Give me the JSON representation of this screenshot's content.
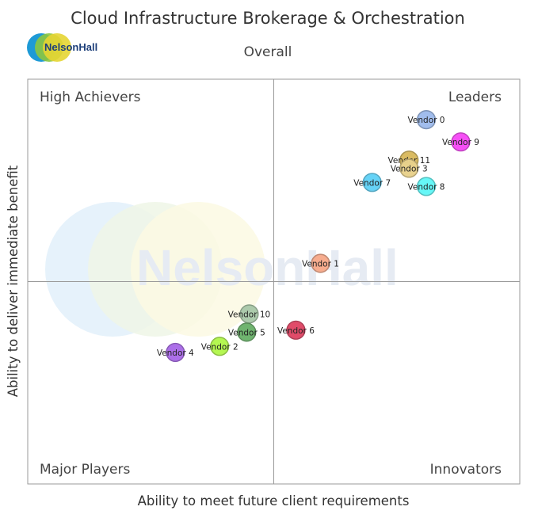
{
  "logo": {
    "text": "NelsonHall"
  },
  "watermark": {
    "text": "NelsonHall"
  },
  "chart_data": {
    "type": "scatter",
    "title": "Cloud Infrastructure Brokerage & Orchestration",
    "subtitle": "Overall",
    "xlabel": "Ability to meet future client requirements",
    "ylabel": "Ability to deliver immediate benefit",
    "xlim": [
      0,
      10
    ],
    "ylim": [
      0,
      10
    ],
    "quadrants": {
      "top_left": "High Achievers",
      "top_right": "Leaders",
      "bottom_left": "Major Players",
      "bottom_right": "Innovators"
    },
    "points": [
      {
        "label": "Vendor 0",
        "x": 8.1,
        "y": 9.0,
        "color": "#a4c2f4"
      },
      {
        "label": "Vendor 9",
        "x": 8.8,
        "y": 8.45,
        "color": "#ff4dff"
      },
      {
        "label": "Vendor 11",
        "x": 7.75,
        "y": 8.0,
        "color": "#e0c060"
      },
      {
        "label": "Vendor 3",
        "x": 7.75,
        "y": 7.8,
        "color": "#f0d890"
      },
      {
        "label": "Vendor 7",
        "x": 7.0,
        "y": 7.45,
        "color": "#66d9ff"
      },
      {
        "label": "Vendor 8",
        "x": 8.1,
        "y": 7.35,
        "color": "#66ffff"
      },
      {
        "label": "Vendor 1",
        "x": 5.95,
        "y": 5.45,
        "color": "#ffb090"
      },
      {
        "label": "Vendor 10",
        "x": 4.5,
        "y": 4.2,
        "color": "#b0d0b0"
      },
      {
        "label": "Vendor 5",
        "x": 4.45,
        "y": 3.75,
        "color": "#70b870"
      },
      {
        "label": "Vendor 6",
        "x": 5.45,
        "y": 3.8,
        "color": "#e84a6a"
      },
      {
        "label": "Vendor 2",
        "x": 3.9,
        "y": 3.4,
        "color": "#b8ff50"
      },
      {
        "label": "Vendor 4",
        "x": 3.0,
        "y": 3.25,
        "color": "#b070f0"
      }
    ]
  }
}
